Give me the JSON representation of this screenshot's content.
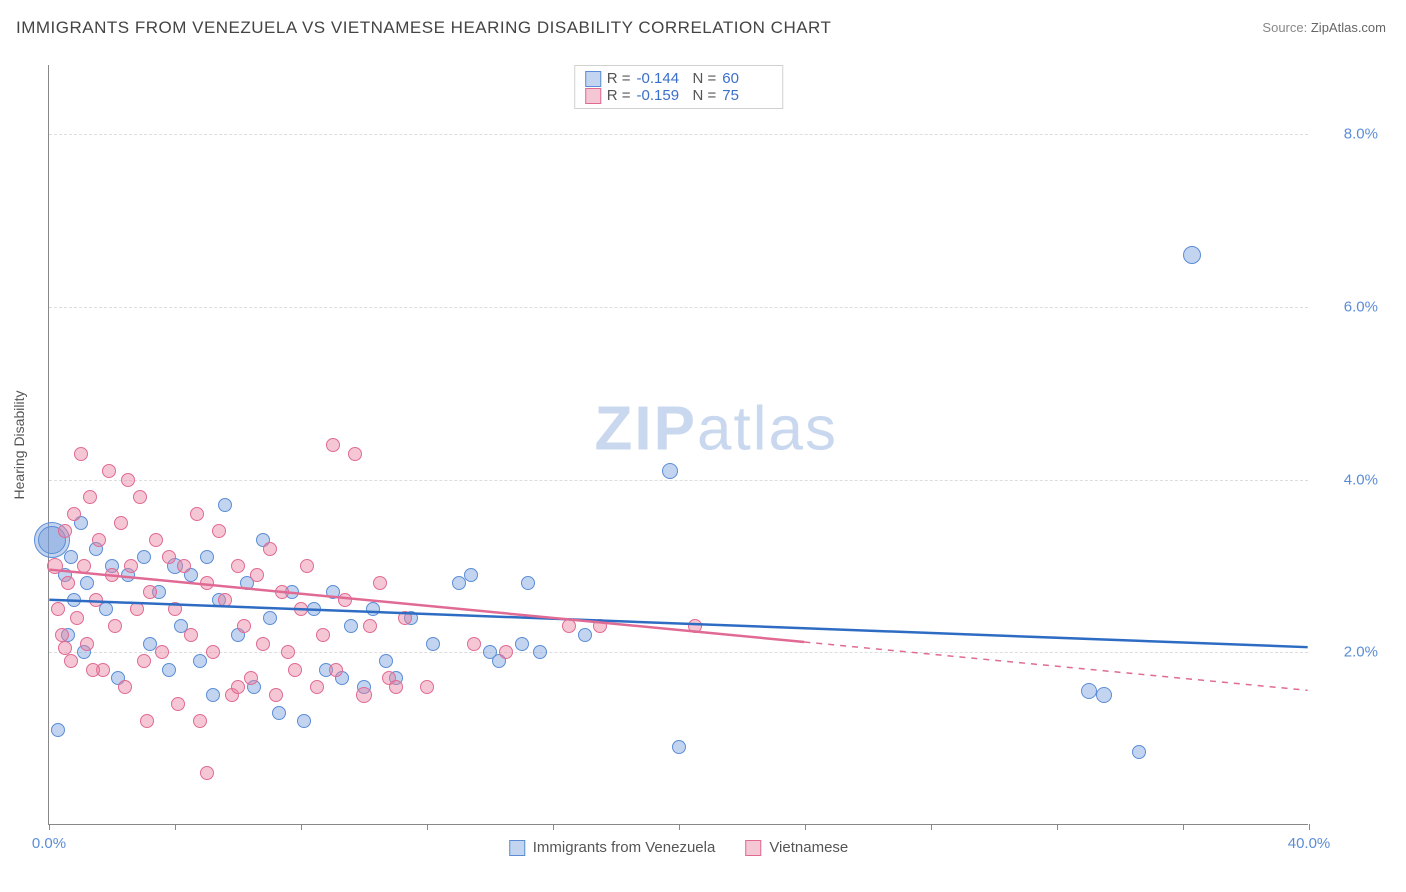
{
  "title": "IMMIGRANTS FROM VENEZUELA VS VIETNAMESE HEARING DISABILITY CORRELATION CHART",
  "source_label": "Source:",
  "source_value": "ZipAtlas.com",
  "watermark": {
    "zip": "ZIP",
    "atlas": "atlas"
  },
  "ylabel": "Hearing Disability",
  "chart": {
    "type": "scatter",
    "xlim": [
      0,
      40
    ],
    "ylim": [
      0,
      8.8
    ],
    "x_ticks": [
      0,
      4,
      8,
      12,
      16,
      20,
      24,
      28,
      32,
      36,
      40
    ],
    "x_tick_labels": {
      "0": "0.0%",
      "40": "40.0%"
    },
    "y_ticks": [
      2,
      4,
      6,
      8
    ],
    "y_tick_labels": [
      "2.0%",
      "4.0%",
      "6.0%",
      "8.0%"
    ],
    "background_color": "#ffffff",
    "grid_color": "#dddddd",
    "axis_color": "#888888",
    "tick_label_color": "#5b8dd6",
    "series": [
      {
        "id": "venezuela",
        "label": "Immigrants from Venezuela",
        "R": "-0.144",
        "N": "60",
        "fill": "rgba(120,160,220,0.45)",
        "stroke": "#5b8dd6",
        "trend_color": "#2e6cc4",
        "trend": {
          "x1": 0,
          "y1": 2.6,
          "x2": 40,
          "y2": 2.05,
          "solid_to_x": 40
        },
        "points": [
          {
            "x": 0.1,
            "y": 3.3,
            "r": 18
          },
          {
            "x": 0.1,
            "y": 3.3,
            "r": 14
          },
          {
            "x": 0.3,
            "y": 1.1,
            "r": 7
          },
          {
            "x": 0.5,
            "y": 2.9,
            "r": 7
          },
          {
            "x": 0.6,
            "y": 2.2,
            "r": 7
          },
          {
            "x": 0.7,
            "y": 3.1,
            "r": 7
          },
          {
            "x": 0.8,
            "y": 2.6,
            "r": 7
          },
          {
            "x": 1.0,
            "y": 3.5,
            "r": 7
          },
          {
            "x": 1.1,
            "y": 2.0,
            "r": 7
          },
          {
            "x": 1.2,
            "y": 2.8,
            "r": 7
          },
          {
            "x": 1.5,
            "y": 3.2,
            "r": 7
          },
          {
            "x": 1.8,
            "y": 2.5,
            "r": 7
          },
          {
            "x": 2.0,
            "y": 3.0,
            "r": 7
          },
          {
            "x": 2.2,
            "y": 1.7,
            "r": 7
          },
          {
            "x": 2.5,
            "y": 2.9,
            "r": 7
          },
          {
            "x": 3.0,
            "y": 3.1,
            "r": 7
          },
          {
            "x": 3.2,
            "y": 2.1,
            "r": 7
          },
          {
            "x": 3.5,
            "y": 2.7,
            "r": 7
          },
          {
            "x": 4.0,
            "y": 3.0,
            "r": 8
          },
          {
            "x": 4.2,
            "y": 2.3,
            "r": 7
          },
          {
            "x": 4.5,
            "y": 2.9,
            "r": 7
          },
          {
            "x": 4.8,
            "y": 1.9,
            "r": 7
          },
          {
            "x": 5.0,
            "y": 3.1,
            "r": 7
          },
          {
            "x": 5.4,
            "y": 2.6,
            "r": 7
          },
          {
            "x": 5.6,
            "y": 3.7,
            "r": 7
          },
          {
            "x": 6.0,
            "y": 2.2,
            "r": 7
          },
          {
            "x": 6.3,
            "y": 2.8,
            "r": 7
          },
          {
            "x": 6.5,
            "y": 1.6,
            "r": 7
          },
          {
            "x": 7.0,
            "y": 2.4,
            "r": 7
          },
          {
            "x": 7.3,
            "y": 1.3,
            "r": 7
          },
          {
            "x": 7.7,
            "y": 2.7,
            "r": 7
          },
          {
            "x": 8.1,
            "y": 1.2,
            "r": 7
          },
          {
            "x": 8.4,
            "y": 2.5,
            "r": 7
          },
          {
            "x": 8.8,
            "y": 1.8,
            "r": 7
          },
          {
            "x": 9.0,
            "y": 2.7,
            "r": 7
          },
          {
            "x": 9.3,
            "y": 1.7,
            "r": 7
          },
          {
            "x": 9.6,
            "y": 2.3,
            "r": 7
          },
          {
            "x": 10.0,
            "y": 1.6,
            "r": 7
          },
          {
            "x": 10.3,
            "y": 2.5,
            "r": 7
          },
          {
            "x": 10.7,
            "y": 1.9,
            "r": 7
          },
          {
            "x": 11.0,
            "y": 1.7,
            "r": 7
          },
          {
            "x": 11.5,
            "y": 2.4,
            "r": 7
          },
          {
            "x": 13.0,
            "y": 2.8,
            "r": 7
          },
          {
            "x": 13.4,
            "y": 2.9,
            "r": 7
          },
          {
            "x": 14.0,
            "y": 2.0,
            "r": 7
          },
          {
            "x": 14.3,
            "y": 1.9,
            "r": 7
          },
          {
            "x": 15.0,
            "y": 2.1,
            "r": 7
          },
          {
            "x": 15.2,
            "y": 2.8,
            "r": 7
          },
          {
            "x": 15.6,
            "y": 2.0,
            "r": 7
          },
          {
            "x": 17.0,
            "y": 2.2,
            "r": 7
          },
          {
            "x": 19.7,
            "y": 4.1,
            "r": 8
          },
          {
            "x": 20.0,
            "y": 0.9,
            "r": 7
          },
          {
            "x": 33.0,
            "y": 1.55,
            "r": 8
          },
          {
            "x": 33.5,
            "y": 1.5,
            "r": 8
          },
          {
            "x": 34.6,
            "y": 0.85,
            "r": 7
          },
          {
            "x": 36.3,
            "y": 6.6,
            "r": 9
          },
          {
            "x": 5.2,
            "y": 1.5,
            "r": 7
          },
          {
            "x": 6.8,
            "y": 3.3,
            "r": 7
          },
          {
            "x": 3.8,
            "y": 1.8,
            "r": 7
          },
          {
            "x": 12.2,
            "y": 2.1,
            "r": 7
          }
        ]
      },
      {
        "id": "vietnamese",
        "label": "Vietnamese",
        "R": "-0.159",
        "N": "75",
        "fill": "rgba(232,130,160,0.45)",
        "stroke": "#e06a94",
        "trend_color": "#e06a94",
        "trend": {
          "x1": 0,
          "y1": 2.95,
          "x2": 40,
          "y2": 1.55,
          "solid_to_x": 24
        },
        "points": [
          {
            "x": 0.2,
            "y": 3.0,
            "r": 8
          },
          {
            "x": 0.3,
            "y": 2.5,
            "r": 7
          },
          {
            "x": 0.4,
            "y": 2.2,
            "r": 7
          },
          {
            "x": 0.5,
            "y": 3.4,
            "r": 7
          },
          {
            "x": 0.5,
            "y": 2.05,
            "r": 7
          },
          {
            "x": 0.6,
            "y": 2.8,
            "r": 7
          },
          {
            "x": 0.7,
            "y": 1.9,
            "r": 7
          },
          {
            "x": 0.8,
            "y": 3.6,
            "r": 7
          },
          {
            "x": 0.9,
            "y": 2.4,
            "r": 7
          },
          {
            "x": 1.0,
            "y": 4.3,
            "r": 7
          },
          {
            "x": 1.1,
            "y": 3.0,
            "r": 7
          },
          {
            "x": 1.2,
            "y": 2.1,
            "r": 7
          },
          {
            "x": 1.3,
            "y": 3.8,
            "r": 7
          },
          {
            "x": 1.5,
            "y": 2.6,
            "r": 7
          },
          {
            "x": 1.6,
            "y": 3.3,
            "r": 7
          },
          {
            "x": 1.7,
            "y": 1.8,
            "r": 7
          },
          {
            "x": 1.9,
            "y": 4.1,
            "r": 7
          },
          {
            "x": 2.0,
            "y": 2.9,
            "r": 7
          },
          {
            "x": 2.1,
            "y": 2.3,
            "r": 7
          },
          {
            "x": 2.3,
            "y": 3.5,
            "r": 7
          },
          {
            "x": 2.4,
            "y": 1.6,
            "r": 7
          },
          {
            "x": 2.6,
            "y": 3.0,
            "r": 7
          },
          {
            "x": 2.8,
            "y": 2.5,
            "r": 7
          },
          {
            "x": 2.9,
            "y": 3.8,
            "r": 7
          },
          {
            "x": 3.0,
            "y": 1.9,
            "r": 7
          },
          {
            "x": 3.2,
            "y": 2.7,
            "r": 7
          },
          {
            "x": 3.4,
            "y": 3.3,
            "r": 7
          },
          {
            "x": 3.6,
            "y": 2.0,
            "r": 7
          },
          {
            "x": 3.8,
            "y": 3.1,
            "r": 7
          },
          {
            "x": 4.0,
            "y": 2.5,
            "r": 7
          },
          {
            "x": 4.1,
            "y": 1.4,
            "r": 7
          },
          {
            "x": 4.3,
            "y": 3.0,
            "r": 7
          },
          {
            "x": 4.5,
            "y": 2.2,
            "r": 7
          },
          {
            "x": 4.7,
            "y": 3.6,
            "r": 7
          },
          {
            "x": 4.8,
            "y": 1.2,
            "r": 7
          },
          {
            "x": 5.0,
            "y": 2.8,
            "r": 7
          },
          {
            "x": 5.0,
            "y": 0.6,
            "r": 7
          },
          {
            "x": 5.2,
            "y": 2.0,
            "r": 7
          },
          {
            "x": 5.4,
            "y": 3.4,
            "r": 7
          },
          {
            "x": 5.6,
            "y": 2.6,
            "r": 7
          },
          {
            "x": 5.8,
            "y": 1.5,
            "r": 7
          },
          {
            "x": 6.0,
            "y": 3.0,
            "r": 7
          },
          {
            "x": 6.0,
            "y": 1.6,
            "r": 7
          },
          {
            "x": 6.2,
            "y": 2.3,
            "r": 7
          },
          {
            "x": 6.4,
            "y": 1.7,
            "r": 7
          },
          {
            "x": 6.6,
            "y": 2.9,
            "r": 7
          },
          {
            "x": 6.8,
            "y": 2.1,
            "r": 7
          },
          {
            "x": 7.0,
            "y": 3.2,
            "r": 7
          },
          {
            "x": 7.2,
            "y": 1.5,
            "r": 7
          },
          {
            "x": 7.4,
            "y": 2.7,
            "r": 7
          },
          {
            "x": 7.6,
            "y": 2.0,
            "r": 7
          },
          {
            "x": 7.8,
            "y": 1.8,
            "r": 7
          },
          {
            "x": 8.0,
            "y": 2.5,
            "r": 7
          },
          {
            "x": 8.2,
            "y": 3.0,
            "r": 7
          },
          {
            "x": 8.5,
            "y": 1.6,
            "r": 7
          },
          {
            "x": 8.7,
            "y": 2.2,
            "r": 7
          },
          {
            "x": 9.0,
            "y": 4.4,
            "r": 7
          },
          {
            "x": 9.1,
            "y": 1.8,
            "r": 7
          },
          {
            "x": 9.4,
            "y": 2.6,
            "r": 7
          },
          {
            "x": 9.7,
            "y": 4.3,
            "r": 7
          },
          {
            "x": 10.0,
            "y": 1.5,
            "r": 8
          },
          {
            "x": 10.2,
            "y": 2.3,
            "r": 7
          },
          {
            "x": 10.5,
            "y": 2.8,
            "r": 7
          },
          {
            "x": 10.8,
            "y": 1.7,
            "r": 7
          },
          {
            "x": 11.0,
            "y": 1.6,
            "r": 7
          },
          {
            "x": 11.3,
            "y": 2.4,
            "r": 7
          },
          {
            "x": 12.0,
            "y": 1.6,
            "r": 7
          },
          {
            "x": 13.5,
            "y": 2.1,
            "r": 7
          },
          {
            "x": 14.5,
            "y": 2.0,
            "r": 7
          },
          {
            "x": 16.5,
            "y": 2.3,
            "r": 7
          },
          {
            "x": 17.5,
            "y": 2.3,
            "r": 7
          },
          {
            "x": 20.5,
            "y": 2.3,
            "r": 7
          },
          {
            "x": 3.1,
            "y": 1.2,
            "r": 7
          },
          {
            "x": 2.5,
            "y": 4.0,
            "r": 7
          },
          {
            "x": 1.4,
            "y": 1.8,
            "r": 7
          }
        ]
      }
    ],
    "legend_top_labels": {
      "R": "R =",
      "N": "N ="
    },
    "legend_bottom": [
      "Immigrants from Venezuela",
      "Vietnamese"
    ]
  }
}
